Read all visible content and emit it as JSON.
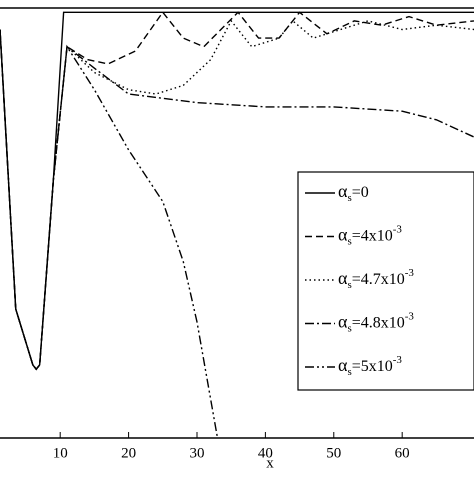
{
  "chart_data": {
    "type": "line",
    "xlabel": "x",
    "xlim": [
      1.2,
      70.5
    ],
    "xticks": [
      10,
      20,
      30,
      40,
      50,
      60
    ],
    "ylim": [
      0,
      1
    ],
    "grid": false,
    "legend": "lower right",
    "series": [
      {
        "name": {
          "symbol": "α",
          "sub": "s",
          "text": "=0"
        },
        "color": "#000",
        "dash": "none",
        "x": [
          1.2,
          3.5,
          6,
          6.5,
          7,
          9,
          10.5,
          20,
          40,
          70.5
        ],
        "values": [
          0.95,
          0.3,
          0.17,
          0.16,
          0.17,
          0.6,
          0.99,
          0.99,
          0.99,
          0.99
        ]
      },
      {
        "name": {
          "symbol": "α",
          "sub": "s",
          "text": "=4x10",
          "sup": "-3"
        },
        "color": "#000",
        "dash": "7,4",
        "x": [
          1.2,
          3.5,
          6,
          6.5,
          7,
          9,
          11,
          14,
          17,
          21,
          25,
          28,
          31,
          36,
          39,
          42,
          45,
          49,
          53,
          57,
          61,
          65,
          70.5
        ],
        "values": [
          0.95,
          0.3,
          0.17,
          0.16,
          0.17,
          0.6,
          0.91,
          0.88,
          0.87,
          0.9,
          0.99,
          0.93,
          0.91,
          0.99,
          0.93,
          0.93,
          0.99,
          0.94,
          0.97,
          0.96,
          0.98,
          0.96,
          0.97
        ]
      },
      {
        "name": {
          "symbol": "α",
          "sub": "s",
          "text": "=4.7x10",
          "sup": "-3"
        },
        "color": "#000",
        "dash": "1.5,3",
        "x": [
          1.2,
          3.5,
          6,
          6.5,
          7,
          9,
          11,
          15,
          20,
          24,
          28,
          32,
          35,
          38,
          42,
          44,
          47,
          51,
          55,
          60,
          65,
          70.5
        ],
        "values": [
          0.95,
          0.3,
          0.17,
          0.16,
          0.17,
          0.6,
          0.91,
          0.85,
          0.81,
          0.8,
          0.82,
          0.88,
          0.97,
          0.91,
          0.93,
          0.97,
          0.93,
          0.95,
          0.97,
          0.95,
          0.96,
          0.95
        ]
      },
      {
        "name": {
          "symbol": "α",
          "sub": "s",
          "text": "=4.8x10",
          "sup": "-3"
        },
        "color": "#000",
        "dash": "9,3,2,3",
        "x": [
          1.2,
          3.5,
          6,
          6.5,
          7,
          9,
          11,
          15,
          20,
          25,
          30,
          40,
          50,
          60,
          65,
          70.5
        ],
        "values": [
          0.95,
          0.3,
          0.17,
          0.16,
          0.17,
          0.6,
          0.91,
          0.86,
          0.8,
          0.79,
          0.78,
          0.77,
          0.77,
          0.76,
          0.74,
          0.7
        ]
      },
      {
        "name": {
          "symbol": "α",
          "sub": "s",
          "text": "=5x10",
          "sup": "-3"
        },
        "color": "#000",
        "dash": "9,3,2,3,2,3",
        "x": [
          1.2,
          3.5,
          6,
          6.5,
          7,
          9,
          11,
          15,
          20,
          25,
          28,
          30,
          32,
          33
        ],
        "values": [
          0.95,
          0.3,
          0.17,
          0.16,
          0.17,
          0.6,
          0.91,
          0.81,
          0.67,
          0.55,
          0.41,
          0.27,
          0.09,
          0.0
        ]
      }
    ]
  }
}
